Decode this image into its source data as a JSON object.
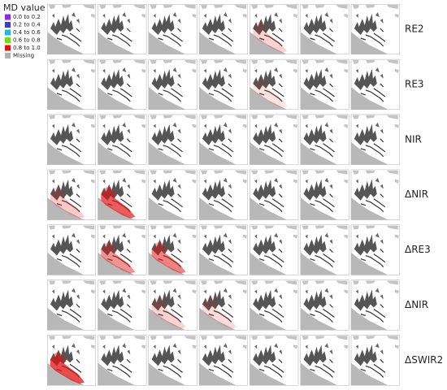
{
  "legend": {
    "title": "MD value",
    "entries": [
      {
        "label": "0.0 to 0.2",
        "color": "#8b2be2"
      },
      {
        "label": "0.2 to 0.4",
        "color": "#3a3ad8"
      },
      {
        "label": "0.4 to 0.6",
        "color": "#22b8d8"
      },
      {
        "label": "0.6 to 0.8",
        "color": "#7ad820"
      },
      {
        "label": "0.8 to 1.0",
        "color": "#e01010"
      },
      {
        "label": "Missing",
        "color": "#b0b0b0"
      }
    ]
  },
  "rows": [
    {
      "label": "RE2"
    },
    {
      "label": "RE3"
    },
    {
      "label": "NIR"
    },
    {
      "label": "ΔNIR"
    },
    {
      "label": "ΔRE3"
    },
    {
      "label": "ΔNIR"
    },
    {
      "label": "ΔSWIR2"
    }
  ]
}
